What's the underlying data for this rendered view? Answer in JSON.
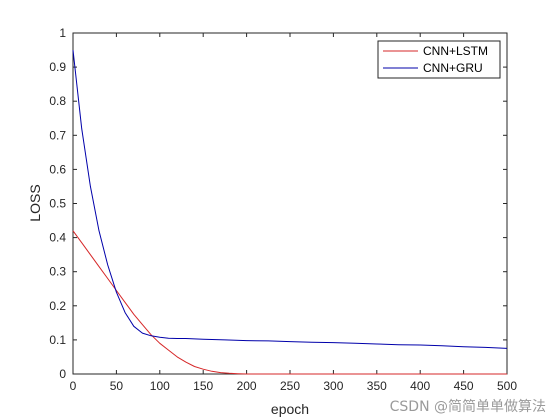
{
  "chart_data": {
    "type": "line",
    "xlabel": "epoch",
    "ylabel": "LOSS",
    "xlim": [
      0,
      500
    ],
    "ylim": [
      0,
      1
    ],
    "xticks": [
      0,
      50,
      100,
      150,
      200,
      250,
      300,
      350,
      400,
      450,
      500
    ],
    "yticks": [
      0,
      0.1,
      0.2,
      0.3,
      0.4,
      0.5,
      0.6,
      0.7,
      0.8,
      0.9,
      1
    ],
    "grid": false,
    "legend": "top-right",
    "series": [
      {
        "name": "CNN+LSTM",
        "color": "#d62728",
        "x": [
          0,
          10,
          20,
          30,
          40,
          50,
          60,
          70,
          80,
          90,
          100,
          110,
          120,
          130,
          140,
          150,
          160,
          170,
          180,
          190,
          200,
          250,
          300,
          350,
          400,
          450,
          500
        ],
        "y": [
          0.42,
          0.385,
          0.35,
          0.315,
          0.28,
          0.245,
          0.21,
          0.175,
          0.145,
          0.115,
          0.09,
          0.07,
          0.05,
          0.035,
          0.022,
          0.014,
          0.008,
          0.004,
          0.002,
          0.001,
          0.0,
          0.0,
          0.0,
          0.0,
          0.0,
          0.0,
          0.0
        ]
      },
      {
        "name": "CNN+GRU",
        "color": "#0000aa",
        "x": [
          0,
          10,
          20,
          30,
          40,
          50,
          60,
          70,
          80,
          90,
          100,
          110,
          120,
          130,
          150,
          175,
          200,
          225,
          250,
          275,
          300,
          325,
          350,
          375,
          400,
          425,
          450,
          475,
          500
        ],
        "y": [
          0.95,
          0.72,
          0.55,
          0.42,
          0.32,
          0.24,
          0.18,
          0.14,
          0.12,
          0.112,
          0.108,
          0.105,
          0.104,
          0.104,
          0.102,
          0.1,
          0.098,
          0.097,
          0.095,
          0.093,
          0.092,
          0.09,
          0.088,
          0.086,
          0.085,
          0.083,
          0.08,
          0.078,
          0.075
        ]
      }
    ]
  },
  "watermark": "CSDN @简简单单做算法"
}
